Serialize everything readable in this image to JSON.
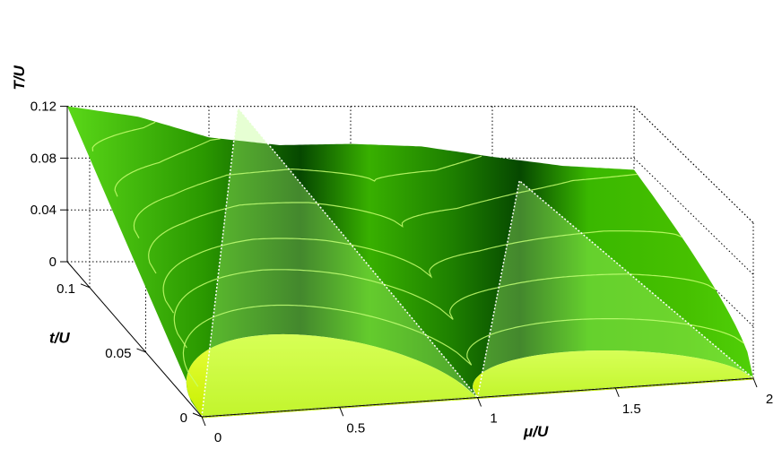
{
  "chart_data": {
    "type": "surface",
    "title": "",
    "axes": {
      "T": {
        "label": "T/U",
        "ticks": [
          "0",
          "0.04",
          "0.08",
          "0.12"
        ],
        "range": [
          0,
          0.12
        ]
      },
      "t": {
        "label": "t/U",
        "ticks": [
          "0",
          "0.05",
          "0.1"
        ],
        "range": [
          0,
          0.12
        ]
      },
      "mu": {
        "label": "μ/U",
        "ticks": [
          "0",
          "0.5",
          "1",
          "1.5",
          "2"
        ],
        "range": [
          0,
          2
        ]
      }
    },
    "grid": true,
    "series": [
      {
        "role": "surface",
        "color": "#2ea800"
      },
      {
        "role": "lobe-floor",
        "color": "#d0f000"
      },
      {
        "role": "contours",
        "color": "#c8ff70"
      }
    ],
    "surface_T_at_t_max": [
      [
        0,
        0.12
      ],
      [
        0.25,
        0.112
      ],
      [
        0.5,
        0.096
      ],
      [
        0.75,
        0.09
      ],
      [
        1,
        0.091
      ],
      [
        1.25,
        0.089
      ],
      [
        1.5,
        0.081
      ],
      [
        1.75,
        0.074
      ],
      [
        2,
        0.071
      ]
    ],
    "mott_lobes": [
      {
        "mu_range": [
          0,
          1
        ],
        "t_peak": 0.06
      },
      {
        "mu_range": [
          1,
          2
        ],
        "t_peak": 0.035
      }
    ]
  }
}
